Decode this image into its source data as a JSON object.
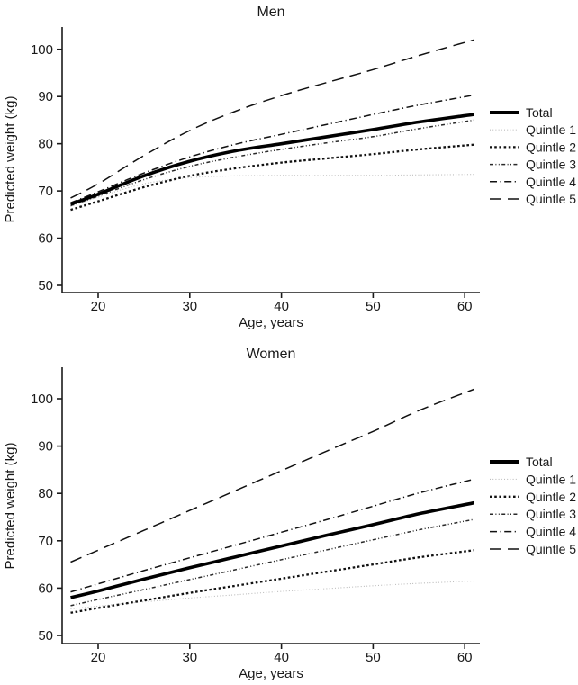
{
  "figure": {
    "description": "Two stacked line charts of predicted weight by age, for men and women, total and five quintiles"
  },
  "chart_data": [
    {
      "type": "line",
      "title": "Men",
      "xlabel": "Age, years",
      "ylabel": "Predicted weight (kg)",
      "x": [
        17,
        20,
        25,
        30,
        35,
        40,
        45,
        50,
        55,
        61
      ],
      "xlim": [
        16,
        62.5
      ],
      "ylim": [
        47,
        106
      ],
      "xticks": [
        20,
        30,
        40,
        50,
        60
      ],
      "yticks": [
        50,
        60,
        70,
        80,
        90,
        100
      ],
      "grid": false,
      "legend_position": "right",
      "series": [
        {
          "name": "Quintle 1",
          "linestyle": "dot-fine",
          "color": "#bcbcbc",
          "values": [
            66.7,
            68.7,
            71.5,
            72.8,
            73.2,
            73.3,
            73.3,
            73.3,
            73.4,
            73.5
          ]
        },
        {
          "name": "Quintle 2",
          "linestyle": "dot-bold",
          "color": "#111111",
          "values": [
            66.0,
            67.8,
            70.8,
            73.2,
            74.8,
            76.0,
            76.9,
            77.8,
            78.8,
            79.8
          ]
        },
        {
          "name": "Quintle 3",
          "linestyle": "dash-dot-dot",
          "color": "#2a2a2a",
          "values": [
            66.9,
            68.9,
            72.4,
            75.2,
            77.2,
            78.8,
            80.2,
            81.5,
            83.2,
            85.0
          ]
        },
        {
          "name": "Quintle 4",
          "linestyle": "dash-dot",
          "color": "#111111",
          "values": [
            67.5,
            69.8,
            73.8,
            77.2,
            79.9,
            82.0,
            84.1,
            86.2,
            88.2,
            90.3
          ]
        },
        {
          "name": "Quintle 5",
          "linestyle": "long-dash",
          "color": "#111111",
          "values": [
            68.5,
            71.5,
            77.5,
            82.8,
            86.9,
            90.2,
            93.0,
            95.7,
            98.7,
            102.0
          ]
        },
        {
          "name": "Total",
          "linestyle": "solid-thick",
          "color": "#000000",
          "values": [
            67.2,
            69.3,
            73.2,
            76.3,
            78.5,
            80.0,
            81.5,
            83.0,
            84.6,
            86.2
          ]
        }
      ],
      "legend_order": [
        "Total",
        "Quintle 1",
        "Quintle 2",
        "Quintle 3",
        "Quintle 4",
        "Quintle 5"
      ]
    },
    {
      "type": "line",
      "title": "Women",
      "xlabel": "Age, years",
      "ylabel": "Predicted weight (kg)",
      "x": [
        17,
        20,
        25,
        30,
        35,
        40,
        45,
        50,
        55,
        61
      ],
      "xlim": [
        16,
        62.5
      ],
      "ylim": [
        47,
        106
      ],
      "xticks": [
        20,
        30,
        40,
        50,
        60
      ],
      "yticks": [
        50,
        60,
        70,
        80,
        90,
        100
      ],
      "grid": false,
      "legend_position": "right",
      "series": [
        {
          "name": "Quintle 1",
          "linestyle": "dot-fine",
          "color": "#bcbcbc",
          "values": [
            55.6,
            56.2,
            57.1,
            57.9,
            58.6,
            59.3,
            59.9,
            60.5,
            61.0,
            61.5
          ]
        },
        {
          "name": "Quintle 2",
          "linestyle": "dot-bold",
          "color": "#111111",
          "values": [
            54.8,
            55.8,
            57.4,
            59.0,
            60.5,
            62.0,
            63.5,
            65.0,
            66.5,
            68.0
          ]
        },
        {
          "name": "Quintle 3",
          "linestyle": "dash-dot-dot",
          "color": "#2a2a2a",
          "values": [
            56.3,
            57.6,
            59.7,
            61.8,
            63.9,
            66.0,
            68.1,
            70.2,
            72.3,
            74.5
          ]
        },
        {
          "name": "Quintle 4",
          "linestyle": "dash-dot",
          "color": "#111111",
          "values": [
            59.2,
            60.9,
            63.7,
            66.4,
            69.1,
            71.8,
            74.5,
            77.3,
            80.1,
            83.0
          ]
        },
        {
          "name": "Quintle 5",
          "linestyle": "long-dash",
          "color": "#111111",
          "values": [
            65.5,
            68.0,
            72.2,
            76.4,
            80.6,
            84.8,
            89.0,
            93.1,
            97.5,
            102.0
          ]
        },
        {
          "name": "Total",
          "linestyle": "solid-thick",
          "color": "#000000",
          "values": [
            58.0,
            59.4,
            61.9,
            64.3,
            66.6,
            68.9,
            71.2,
            73.4,
            75.7,
            78.0
          ]
        }
      ],
      "legend_order": [
        "Total",
        "Quintle 1",
        "Quintle 2",
        "Quintle 3",
        "Quintle 4",
        "Quintle 5"
      ]
    }
  ]
}
